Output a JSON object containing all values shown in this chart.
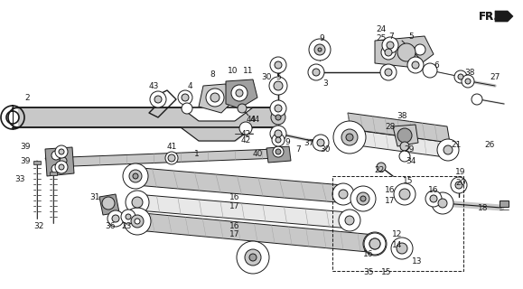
{
  "bg": "#ffffff",
  "lc": "#1a1a1a",
  "gray1": "#c8c8c8",
  "gray2": "#a0a0a0",
  "gray3": "#e8e8e8",
  "fig_w": 5.79,
  "fig_h": 3.2,
  "dpi": 100
}
